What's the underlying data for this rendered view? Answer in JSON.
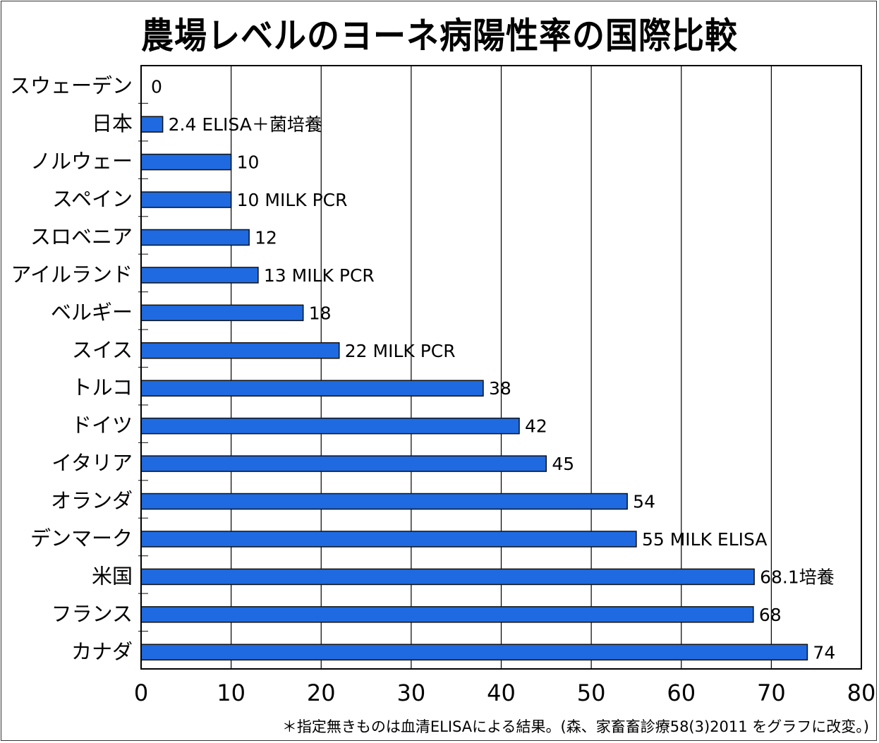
{
  "chart_data": {
    "type": "bar",
    "orientation": "horizontal",
    "title": "農場レベルのヨーネ病陽性率の国際比較",
    "xlabel": "",
    "ylabel": "",
    "xlim": [
      0,
      80
    ],
    "xticks": [
      0,
      10,
      20,
      30,
      40,
      50,
      60,
      70,
      80
    ],
    "grid": "vertical",
    "bar_color": "#1f6ae0",
    "categories": [
      "スウェーデン",
      "日本",
      "ノルウェー",
      "スペイン",
      "スロベニア",
      "アイルランド",
      "ベルギー",
      "スイス",
      "トルコ",
      "ドイツ",
      "イタリア",
      "オランダ",
      "デンマーク",
      "米国",
      "フランス",
      "カナダ"
    ],
    "values": [
      0,
      2.4,
      10,
      10,
      12,
      13,
      18,
      22,
      38,
      42,
      45,
      54,
      55,
      68.1,
      68,
      74
    ],
    "data_labels": [
      "0",
      "2.4 ELISA＋菌培養",
      "10",
      "10 MILK PCR",
      "12",
      "13  MILK PCR",
      "18",
      "22  MILK PCR",
      "38",
      "42",
      "45",
      "54",
      "55 MILK ELISA",
      "68.1培養",
      "68",
      "74"
    ],
    "footnote": "＊指定無きものは血清ELISAによる結果。(森、家畜畜診療58(3)2011 をグラフに改変。)"
  }
}
